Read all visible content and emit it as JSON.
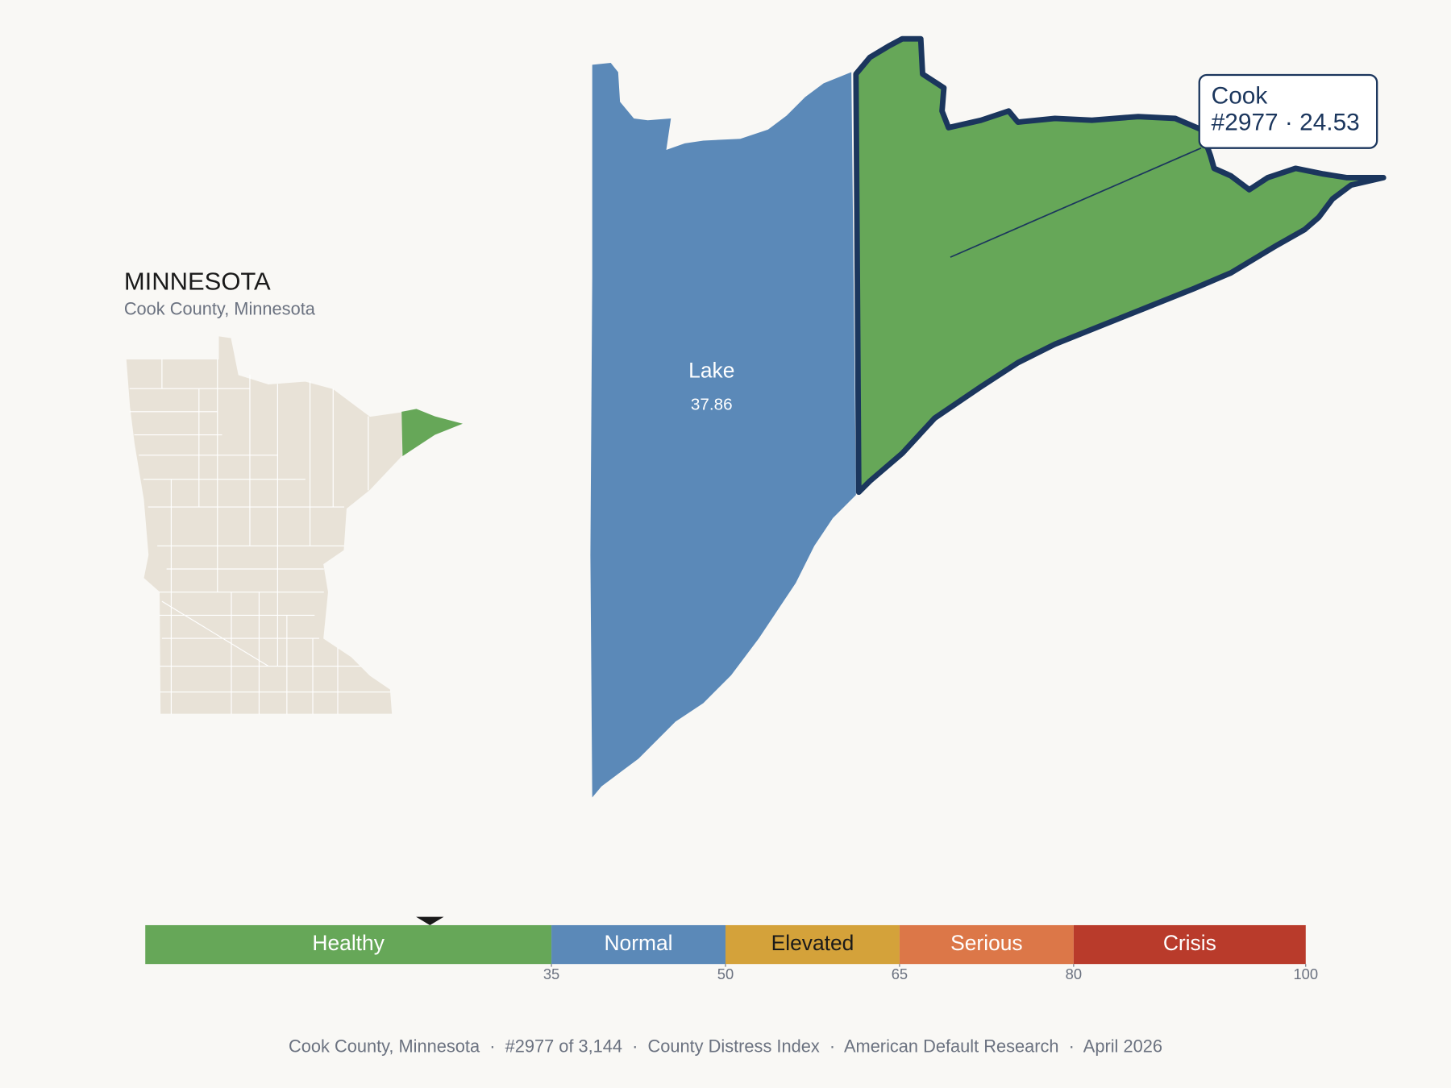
{
  "header": {
    "title": "MINNESOTA",
    "subtitle": "Cook County, Minnesota"
  },
  "regions": [
    {
      "name": "Lake",
      "value": 37.86,
      "color": "#5b89b8"
    },
    {
      "name": "Cook",
      "color": "#66a758",
      "tooltip": [
        "Cook",
        "#2977 · 24.53"
      ]
    }
  ],
  "scale": {
    "range": [
      0,
      100
    ],
    "marker": 24.53,
    "ticks": [
      35,
      50,
      65,
      80,
      100
    ],
    "bands": [
      {
        "label": "Healthy",
        "color": "#66a758",
        "text": "#ffffff"
      },
      {
        "label": "Normal",
        "color": "#5b89b8",
        "text": "#ffffff"
      },
      {
        "label": "Elevated",
        "color": "#d4a23a",
        "text": "#1a1a1a"
      },
      {
        "label": "Serious",
        "color": "#dc7748",
        "text": "#ffffff"
      },
      {
        "label": "Crisis",
        "color": "#b93b2b",
        "text": "#ffffff"
      }
    ]
  },
  "footer": "Cook County, Minnesota  ·  #2977 of 3,144  ·  County Distress Index  ·  American Default Research  ·  April 2026"
}
